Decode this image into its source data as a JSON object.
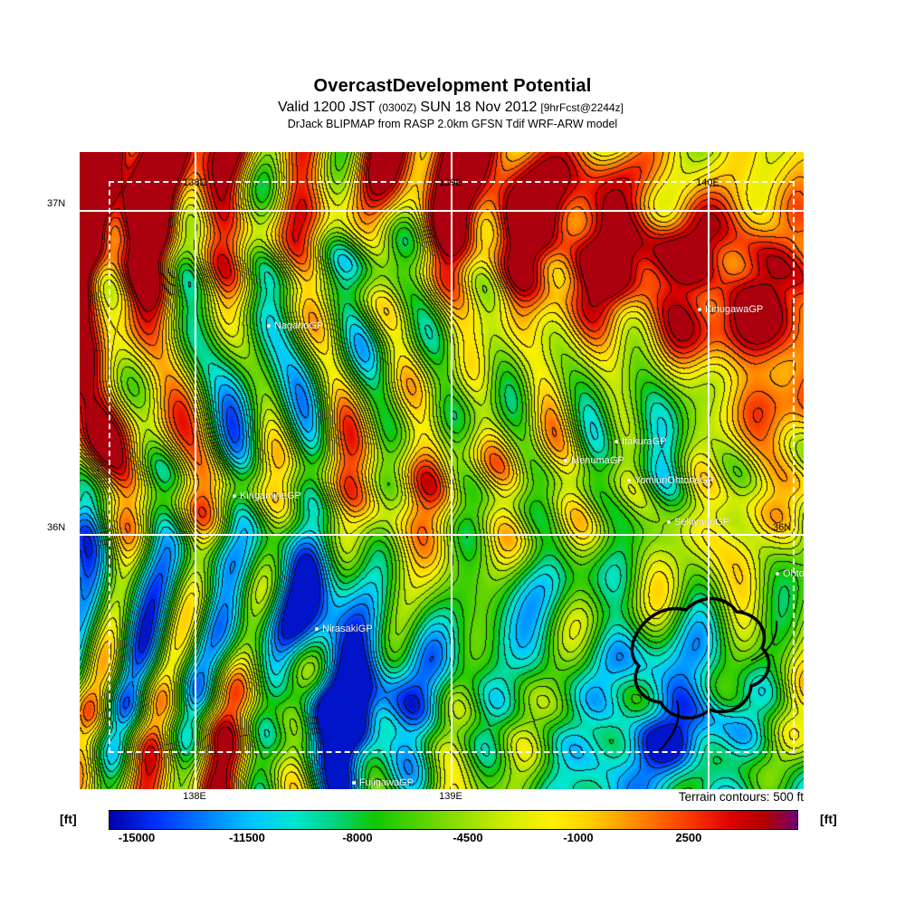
{
  "header": {
    "title": "OvercastDevelopment Potential",
    "valid_prefix": "Valid 1200 JST",
    "valid_time_small": "(0300Z)",
    "valid_date": "SUN 18 Nov 2012",
    "fcst_tag": "[9hrFcst@2244z]",
    "model_line": "DrJack BLIPMAP from RASP 2.0km GFSN Tdif WRF-ARW model"
  },
  "map": {
    "top_lon_labels": [
      "138E",
      "139E",
      "140E"
    ],
    "bottom_lon_labels": [
      "138E",
      "139E"
    ],
    "lat_labels": {
      "left_top": "37N",
      "left_bottom": "36N",
      "right_bottom": "36N"
    },
    "sites": [
      {
        "label": "NaganoGP"
      },
      {
        "label": "KinugawaGP"
      },
      {
        "label": "ItakuraGP"
      },
      {
        "label": "MenumaGP"
      },
      {
        "label": "YomiuriOhtoneGP"
      },
      {
        "label": "SekiyadoGP"
      },
      {
        "label": "OhtoneGP"
      },
      {
        "label": "KirigamineGP"
      },
      {
        "label": "NirasakiGP"
      },
      {
        "label": "FujigawaGP"
      }
    ],
    "terrain_note": "Terrain contours: 500 ft"
  },
  "colorbar": {
    "unit_left": "[ft]",
    "unit_right": "[ft]",
    "ticks": [
      "-15000",
      "-11500",
      "-8000",
      "-4500",
      "-1000",
      "2500"
    ]
  },
  "chart_data": {
    "type": "heatmap",
    "title": "OvercastDevelopment Potential",
    "valid": "1200 JST (0300Z) SUN 18 Nov 2012",
    "forecast_tag": "9hrFcst@2244z",
    "model": "DrJack BLIPMAP from RASP 2.0km GFSN Tdif WRF-ARW model",
    "units": "ft",
    "colorbar_ticks": [
      -15000,
      -11500,
      -8000,
      -4500,
      -1000,
      2500
    ],
    "colorbar_tick_percents": [
      3.95,
      20.0,
      36.05,
      52.1,
      68.15,
      84.2
    ],
    "contour_interval_note": "Terrain contours: 500 ft",
    "lon_gridlines": [
      "138E",
      "139E",
      "140E"
    ],
    "lat_gridlines": [
      "37N",
      "36N"
    ],
    "sites": [
      "NaganoGP",
      "KinugawaGP",
      "ItakuraGP",
      "MenumaGP",
      "YomiuriOhtoneGP",
      "SekiyadoGP",
      "OhtoneGP",
      "KirigamineGP",
      "NirasakiGP",
      "FujigawaGP"
    ],
    "colorbar_stops": [
      [
        0.0,
        "#0000a8"
      ],
      [
        0.07,
        "#0032ff"
      ],
      [
        0.14,
        "#0080ff"
      ],
      [
        0.21,
        "#00c8ff"
      ],
      [
        0.27,
        "#00e6cd"
      ],
      [
        0.33,
        "#00d27d"
      ],
      [
        0.385,
        "#0fc800"
      ],
      [
        0.45,
        "#55d200"
      ],
      [
        0.52,
        "#9be100"
      ],
      [
        0.585,
        "#d7ed00"
      ],
      [
        0.645,
        "#fff000"
      ],
      [
        0.7,
        "#ffcd00"
      ],
      [
        0.755,
        "#ff9600"
      ],
      [
        0.81,
        "#ff5a00"
      ],
      [
        0.86,
        "#f32800"
      ],
      [
        0.905,
        "#dc0000"
      ],
      [
        0.95,
        "#b40000"
      ],
      [
        0.975,
        "#960032"
      ],
      [
        1.0,
        "#6e0078"
      ]
    ]
  }
}
